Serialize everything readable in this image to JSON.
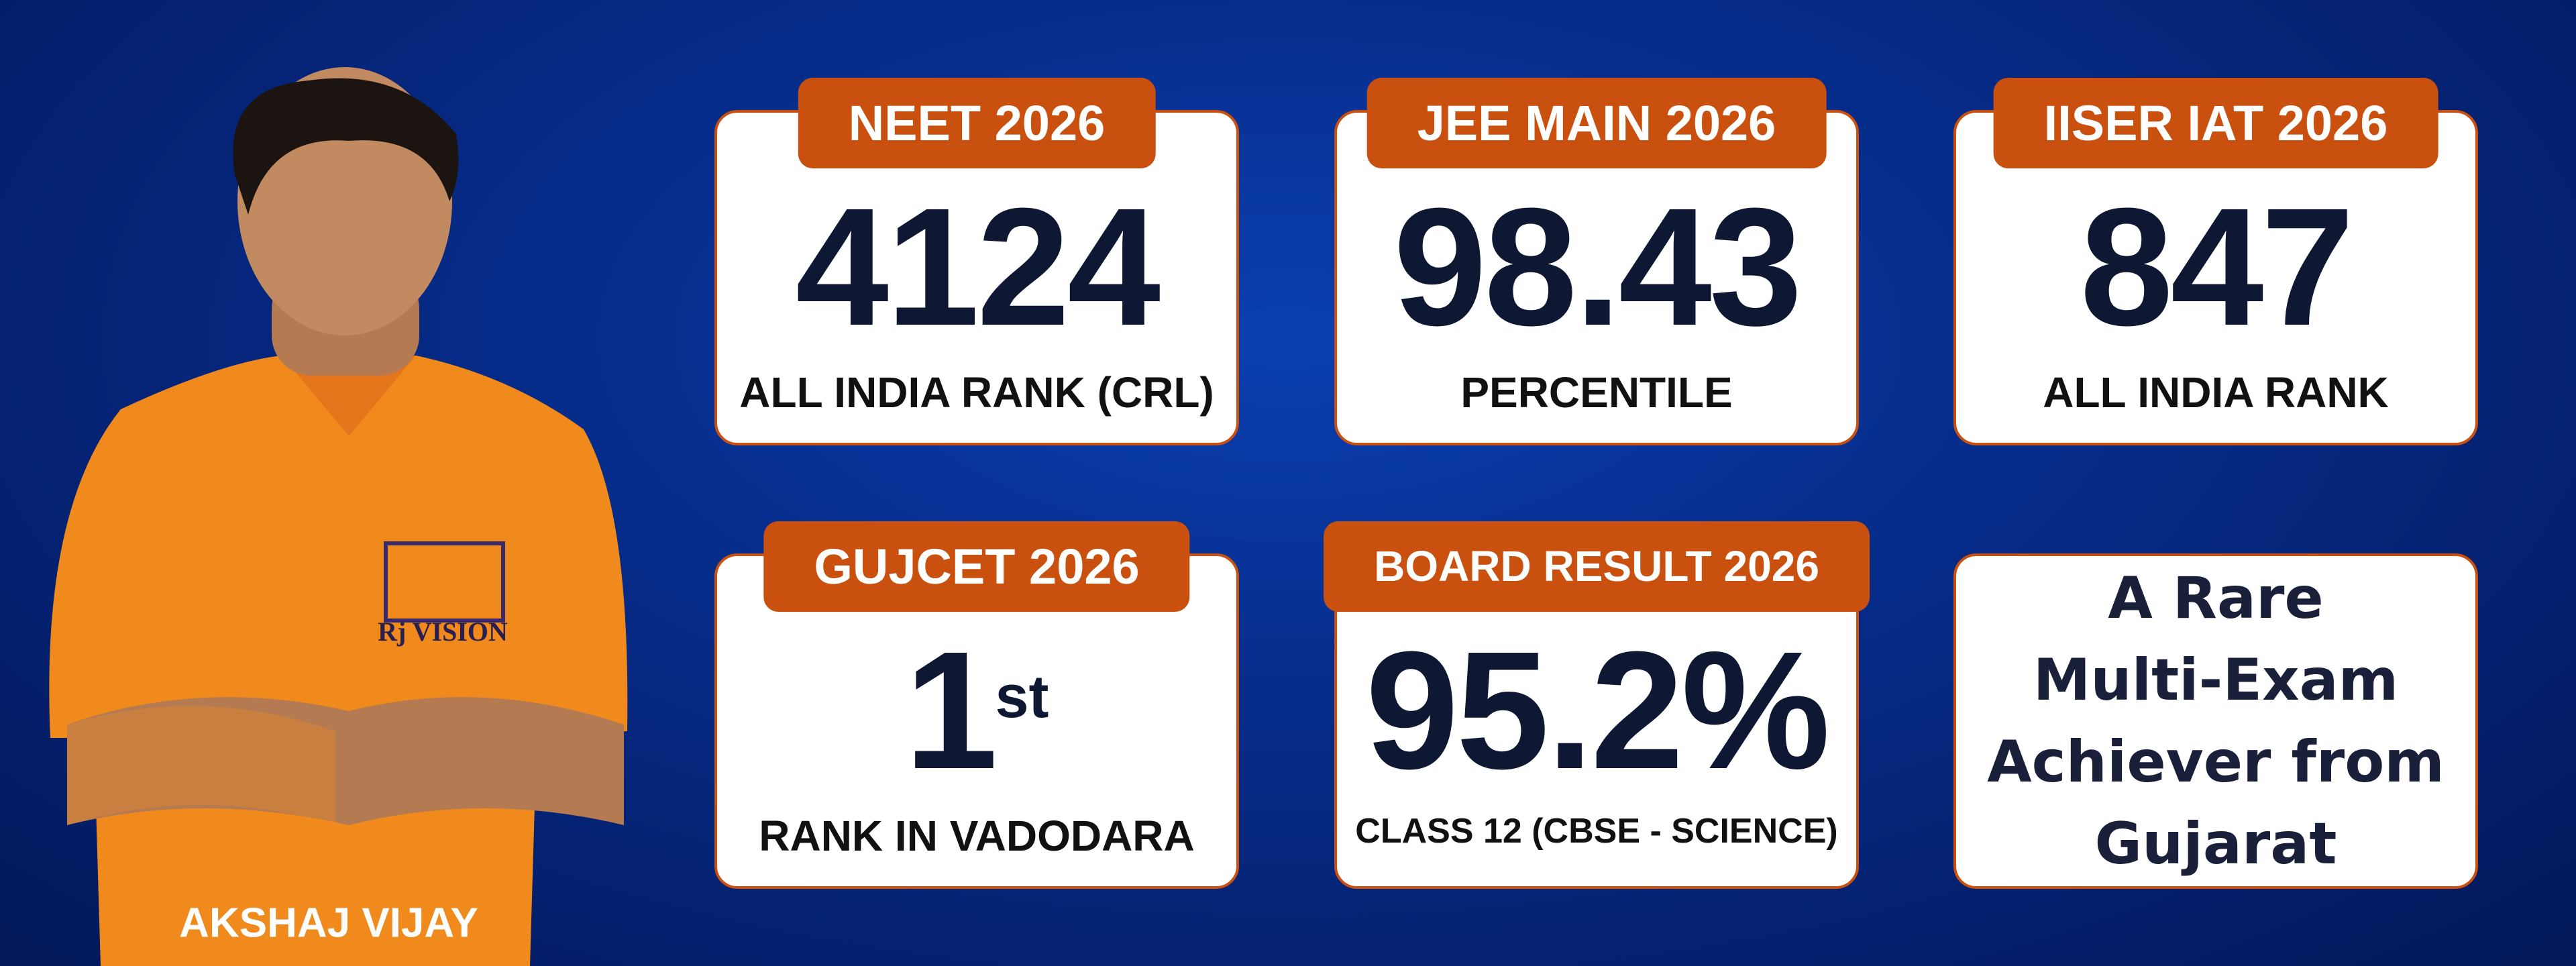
{
  "person": {
    "name": "AKSHAJ VIJAY",
    "shirt_logo": "Rj VISION"
  },
  "cards": [
    {
      "tab": "NEET 2026",
      "value": "4124",
      "caption": "ALL INDIA RANK (CRL)"
    },
    {
      "tab": "JEE MAIN 2026",
      "value": "98.43",
      "caption": "PERCENTILE"
    },
    {
      "tab": "IISER IAT 2026",
      "value": "847",
      "caption": "ALL INDIA RANK"
    },
    {
      "tab": "GUJCET 2026",
      "value": "1",
      "superscript": "st",
      "caption": "RANK IN VADODARA"
    },
    {
      "tab": "BOARD RESULT 2026",
      "value": "95.2%",
      "caption": "CLASS 12 (CBSE - SCIENCE)"
    }
  ],
  "tagline": [
    "A Rare",
    "Multi-Exam",
    "Achiever from",
    "Gujarat"
  ]
}
